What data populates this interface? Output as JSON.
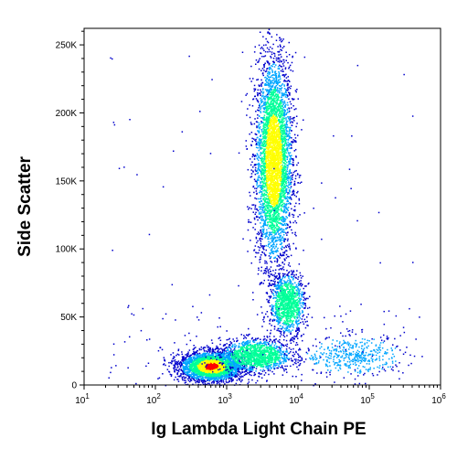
{
  "chart_data": {
    "type": "scatter",
    "style": "density dot plot (flow cytometry)",
    "xlabel": "Ig Lambda Light Chain PE",
    "ylabel": "Side Scatter",
    "x_scale": "log",
    "x_ticks": [
      {
        "value": 10,
        "base": "10",
        "exp": "1"
      },
      {
        "value": 100,
        "base": "10",
        "exp": "2"
      },
      {
        "value": 1000,
        "base": "10",
        "exp": "3"
      },
      {
        "value": 10000,
        "base": "10",
        "exp": "4"
      },
      {
        "value": 100000,
        "base": "10",
        "exp": "5"
      },
      {
        "value": 1000000,
        "base": "10",
        "exp": "6"
      }
    ],
    "y_scale": "linear",
    "y_ticks": [
      {
        "value": 0,
        "label": "0"
      },
      {
        "value": 50000,
        "label": "50K"
      },
      {
        "value": 100000,
        "label": "100K"
      },
      {
        "value": 150000,
        "label": "150K"
      },
      {
        "value": 200000,
        "label": "200K"
      },
      {
        "value": 250000,
        "label": "250K"
      }
    ],
    "xlim": [
      10,
      1000000
    ],
    "ylim": [
      0,
      262144
    ],
    "grid": false,
    "density_colors": [
      "#0000cc",
      "#00a6ff",
      "#00ff99",
      "#ffff00",
      "#ff0000"
    ],
    "populations": [
      {
        "x_center": 4500,
        "y_center": 165000,
        "x_spread_decades": 0.13,
        "y_spread": 38000,
        "count": 4200,
        "peak_color": "#ffff00"
      },
      {
        "x_center": 600,
        "y_center": 14000,
        "x_spread_decades": 0.22,
        "y_spread": 5500,
        "count": 3000,
        "peak_color": "#ff0000"
      },
      {
        "x_center": 2500,
        "y_center": 22000,
        "x_spread_decades": 0.25,
        "y_spread": 6000,
        "count": 1300,
        "peak_color": "#00ff99"
      },
      {
        "x_center": 7000,
        "y_center": 60000,
        "x_spread_decades": 0.12,
        "y_spread": 11000,
        "count": 1100,
        "peak_color": "#00ff99"
      },
      {
        "x_center": 60000,
        "y_center": 22000,
        "x_spread_decades": 0.35,
        "y_spread": 7000,
        "count": 450,
        "peak_color": "#00a6ff"
      }
    ]
  }
}
